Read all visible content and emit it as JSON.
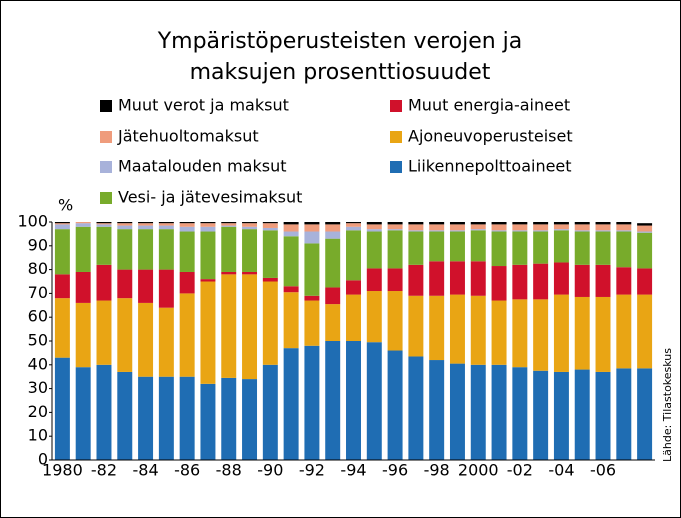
{
  "chart_data": {
    "type": "stacked_bar",
    "title": [
      "Ympäristöperusteisten verojen ja",
      "maksujen prosenttiosuudet"
    ],
    "y_axis_label": "%",
    "source": "Lähde: Tilastokeskus",
    "categories": [
      "1980",
      null,
      "-82",
      null,
      "-84",
      null,
      "-86",
      null,
      "-88",
      null,
      "-90",
      null,
      "-92",
      null,
      "-94",
      null,
      "-96",
      null,
      "-98",
      null,
      "2000",
      null,
      "-02",
      null,
      "-04",
      null,
      "-06",
      null,
      null
    ],
    "series": [
      {
        "name": "Liikennepolttoaineet",
        "color": "#1f6db3",
        "values": [
          43,
          39,
          40,
          37,
          35,
          35,
          35,
          32,
          34.5,
          34,
          40,
          47,
          48,
          50,
          50,
          49.5,
          46,
          43.5,
          42,
          40.5,
          40,
          40,
          39,
          37.5,
          37,
          38,
          37,
          38.5,
          38.5
        ]
      },
      {
        "name": "Ajoneuvoperusteiset",
        "color": "#e9a514",
        "values": [
          25,
          27,
          27,
          31,
          31,
          29,
          35,
          43,
          43.5,
          44,
          35,
          23.5,
          19,
          15.5,
          19.5,
          21.5,
          25,
          25.5,
          27,
          29,
          29,
          27,
          28.5,
          30,
          32.5,
          30.5,
          31.5,
          31,
          31
        ]
      },
      {
        "name": "Muut energia-aineet",
        "color": "#d0112b",
        "values": [
          10,
          13,
          15,
          12,
          14,
          16,
          9,
          1,
          1,
          1,
          1.5,
          2.5,
          2,
          7,
          6,
          9.5,
          9.5,
          13,
          14.5,
          14,
          14.5,
          14.5,
          14.5,
          15,
          13.5,
          13.5,
          13.5,
          11.5,
          11
        ]
      },
      {
        "name": "Vesi- ja jätevesimaksut",
        "color": "#78ab2b",
        "values": [
          19,
          19,
          16,
          17,
          17,
          17,
          17,
          20,
          19,
          18,
          20,
          21,
          22,
          20.5,
          21,
          15.5,
          16,
          14,
          12.5,
          12.5,
          13,
          14.5,
          14,
          13.5,
          13.5,
          14,
          14,
          15,
          15
        ]
      },
      {
        "name": "Maatalouden maksut",
        "color": "#a8b2da",
        "values": [
          2,
          1.5,
          1,
          1.5,
          1.5,
          1.5,
          2,
          2,
          0.5,
          1,
          1,
          2,
          5,
          3,
          1.5,
          1,
          0.5,
          0.5,
          0.5,
          0.5,
          0.5,
          0.5,
          0.5,
          0.5,
          0.5,
          0.5,
          0.5,
          0.5,
          0.5
        ]
      },
      {
        "name": "Jätehuoltomaksut",
        "color": "#ef9c7c",
        "values": [
          0.5,
          0.5,
          0.5,
          1,
          1,
          1,
          1.5,
          1.5,
          1,
          1.5,
          2,
          3,
          3,
          3,
          1.5,
          2,
          2,
          2.5,
          2.5,
          2.5,
          2,
          2.5,
          2.5,
          2.5,
          2,
          2.5,
          2.5,
          2.5,
          2.5
        ]
      },
      {
        "name": "Muut verot ja maksut",
        "color": "#000000",
        "values": [
          0.5,
          0,
          0.5,
          0.5,
          0.5,
          0.5,
          0.5,
          0.5,
          0.5,
          0.5,
          0.5,
          1,
          1,
          1,
          0.5,
          1,
          1,
          1,
          1,
          1,
          1,
          1,
          1,
          1,
          1,
          1,
          1,
          1,
          1
        ]
      }
    ],
    "ylim": [
      0,
      100
    ],
    "yticks": [
      0,
      10,
      20,
      30,
      40,
      50,
      60,
      70,
      80,
      90,
      100
    ]
  }
}
